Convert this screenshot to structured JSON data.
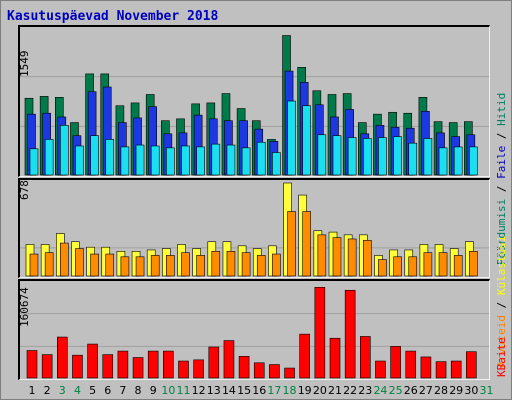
{
  "title": "Kasutuspäevad November 2018",
  "colors": {
    "hits": "#007a4a",
    "files": "#1d37e3",
    "pages": "#19dff0",
    "visits": "#ffff3a",
    "sites": "#ff8c00",
    "kbytes": "#ff0000",
    "weekend_label": "#008040",
    "weekday_label": "#000000",
    "title": "#0000c0"
  },
  "legend": {
    "panel1": [
      "Hitid",
      "Faile",
      "Pöördumisi"
    ],
    "panel1_sep": " / ",
    "panel2": [
      "Arvuteid",
      "Külastusi"
    ],
    "panel2_sep": " / ",
    "panel3": [
      "KBaite"
    ]
  },
  "chart_data": [
    {
      "type": "bar",
      "name": "hits-files-pages",
      "x": [
        1,
        2,
        3,
        4,
        5,
        6,
        7,
        8,
        9,
        10,
        11,
        12,
        13,
        14,
        15,
        16,
        17,
        18,
        19,
        20,
        21,
        22,
        23,
        24,
        25,
        26,
        27,
        28,
        29,
        30,
        31
      ],
      "ymax_label": "1549",
      "ylim": [
        0,
        1549
      ],
      "series": [
        {
          "name": "Hitid",
          "values": [
            820,
            840,
            830,
            560,
            1080,
            1080,
            740,
            770,
            860,
            580,
            600,
            760,
            770,
            870,
            710,
            580,
            380,
            1490,
            1150,
            900,
            860,
            870,
            560,
            650,
            670,
            660,
            830,
            570,
            560,
            570,
            0
          ]
        },
        {
          "name": "Faile",
          "values": [
            650,
            660,
            620,
            420,
            890,
            940,
            560,
            610,
            730,
            440,
            450,
            640,
            600,
            580,
            580,
            490,
            360,
            1110,
            990,
            750,
            620,
            700,
            440,
            530,
            510,
            500,
            680,
            450,
            410,
            430,
            0
          ]
        },
        {
          "name": "Pöördumisi",
          "values": [
            280,
            380,
            530,
            310,
            420,
            380,
            300,
            320,
            310,
            290,
            310,
            300,
            330,
            320,
            290,
            350,
            240,
            790,
            740,
            430,
            420,
            400,
            390,
            400,
            410,
            340,
            390,
            290,
            300,
            300,
            0
          ]
        }
      ]
    },
    {
      "type": "bar",
      "name": "visits-sites",
      "x": [
        1,
        2,
        3,
        4,
        5,
        6,
        7,
        8,
        9,
        10,
        11,
        12,
        13,
        14,
        15,
        16,
        17,
        18,
        19,
        20,
        21,
        22,
        23,
        24,
        25,
        26,
        27,
        28,
        29,
        30,
        31
      ],
      "ymax_label": "678",
      "ylim": [
        0,
        678
      ],
      "series": [
        {
          "name": "Külastusi",
          "values": [
            230,
            230,
            310,
            250,
            210,
            210,
            180,
            180,
            190,
            200,
            230,
            200,
            250,
            250,
            220,
            200,
            220,
            678,
            590,
            330,
            320,
            300,
            300,
            150,
            190,
            190,
            230,
            230,
            200,
            250,
            0
          ]
        },
        {
          "name": "Arvuteid",
          "values": [
            160,
            170,
            240,
            200,
            160,
            160,
            140,
            140,
            150,
            150,
            170,
            150,
            180,
            180,
            170,
            150,
            160,
            470,
            470,
            300,
            280,
            270,
            260,
            120,
            140,
            140,
            170,
            170,
            150,
            180,
            0
          ]
        }
      ]
    },
    {
      "type": "bar",
      "name": "kbytes",
      "x": [
        1,
        2,
        3,
        4,
        5,
        6,
        7,
        8,
        9,
        10,
        11,
        12,
        13,
        14,
        15,
        16,
        17,
        18,
        19,
        20,
        21,
        22,
        23,
        24,
        25,
        26,
        27,
        28,
        29,
        30,
        31
      ],
      "ymax_label": "160674",
      "ylim": [
        0,
        160674
      ],
      "series": [
        {
          "name": "KBaite",
          "values": [
            47000,
            40000,
            70000,
            39000,
            58000,
            40000,
            46000,
            35000,
            46000,
            46000,
            29000,
            31000,
            53000,
            64000,
            37000,
            26000,
            23000,
            17000,
            75000,
            155000,
            68000,
            150000,
            71000,
            29000,
            54000,
            46000,
            36000,
            28000,
            29000,
            45000,
            0
          ]
        }
      ]
    }
  ],
  "x_labels": [
    "1",
    "2",
    "3",
    "4",
    "5",
    "6",
    "7",
    "8",
    "9",
    "10",
    "11",
    "12",
    "13",
    "14",
    "15",
    "16",
    "17",
    "18",
    "19",
    "20",
    "21",
    "22",
    "23",
    "24",
    "25",
    "26",
    "27",
    "28",
    "29",
    "30",
    "31"
  ],
  "weekend_days": [
    3,
    4,
    10,
    11,
    17,
    18,
    24,
    25,
    31
  ]
}
